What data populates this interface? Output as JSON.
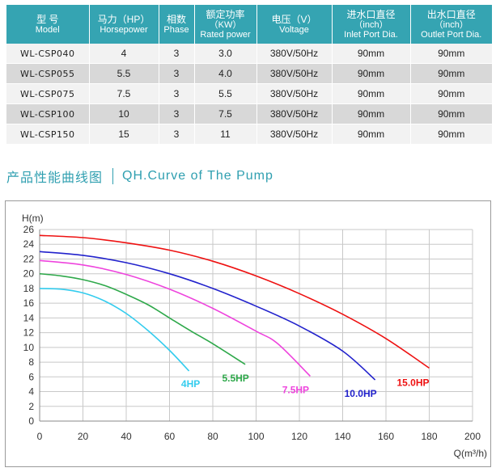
{
  "table": {
    "columns": [
      {
        "zh": "型 号",
        "en": "Model"
      },
      {
        "zh": "马力（HP）",
        "en": "Horsepower"
      },
      {
        "zh": "相数",
        "en": "Phase"
      },
      {
        "zh": "额定功率",
        "zh2": "（KW）",
        "en": "Rated power"
      },
      {
        "zh": "电压（V）",
        "en": "Voltage"
      },
      {
        "zh": "进水口直径",
        "zh2": "（inch）",
        "en": "Inlet Port Dia."
      },
      {
        "zh": "出水口直径",
        "zh2": "（inch）",
        "en": "Outlet Port Dia."
      }
    ],
    "rows": [
      [
        "WL-CSP040",
        "4",
        "3",
        "3.0",
        "380V/50Hz",
        "90mm",
        "90mm"
      ],
      [
        "WL-CSP055",
        "5.5",
        "3",
        "4.0",
        "380V/50Hz",
        "90mm",
        "90mm"
      ],
      [
        "WL-CSP075",
        "7.5",
        "3",
        "5.5",
        "380V/50Hz",
        "90mm",
        "90mm"
      ],
      [
        "WL-CSP100",
        "10",
        "3",
        "7.5",
        "380V/50Hz",
        "90mm",
        "90mm"
      ],
      [
        "WL-CSP150",
        "15",
        "3",
        "11",
        "380V/50Hz",
        "90mm",
        "90mm"
      ]
    ]
  },
  "section": {
    "title_zh": "产品性能曲线图",
    "title_en": "QH.Curve of The Pump"
  },
  "chart_data": {
    "type": "line",
    "ylabel": "H(m)",
    "xlabel": "Q(m³/h)",
    "xlim": [
      0,
      200
    ],
    "ylim": [
      0,
      26
    ],
    "xticks": [
      0,
      20,
      40,
      60,
      80,
      100,
      120,
      140,
      160,
      180,
      200
    ],
    "yticks": [
      0,
      2,
      4,
      6,
      8,
      10,
      12,
      14,
      16,
      18,
      20,
      22,
      24,
      26
    ],
    "grid": true,
    "series": [
      {
        "name": "4HP",
        "color": "#33ccee",
        "x": [
          0,
          10,
          20,
          30,
          40,
          50,
          60,
          69
        ],
        "y": [
          18,
          17.9,
          17.4,
          16.3,
          14.6,
          12.3,
          9.6,
          6.8
        ]
      },
      {
        "name": "5.5HP",
        "color": "#2ea84a",
        "x": [
          0,
          10,
          20,
          30,
          40,
          50,
          60,
          70,
          80,
          95
        ],
        "y": [
          20,
          19.7,
          19.2,
          18.4,
          17.2,
          15.8,
          14.0,
          12.2,
          10.5,
          7.7
        ]
      },
      {
        "name": "7.5HP",
        "color": "#ee44dd",
        "x": [
          0,
          20,
          40,
          60,
          80,
          100,
          110,
          125
        ],
        "y": [
          21.8,
          21.2,
          19.9,
          17.9,
          15.3,
          12.2,
          10.5,
          6.1
        ]
      },
      {
        "name": "10.0HP",
        "color": "#2222cc",
        "x": [
          0,
          20,
          40,
          60,
          80,
          100,
          120,
          140,
          155
        ],
        "y": [
          23,
          22.5,
          21.5,
          20.0,
          18.0,
          15.6,
          12.9,
          9.5,
          5.6
        ]
      },
      {
        "name": "15.0HP",
        "color": "#ee1111",
        "x": [
          0,
          20,
          40,
          60,
          80,
          100,
          120,
          140,
          160,
          180
        ],
        "y": [
          25.2,
          24.9,
          24.2,
          23.2,
          21.7,
          19.7,
          17.3,
          14.5,
          11.2,
          7.2
        ]
      }
    ]
  }
}
